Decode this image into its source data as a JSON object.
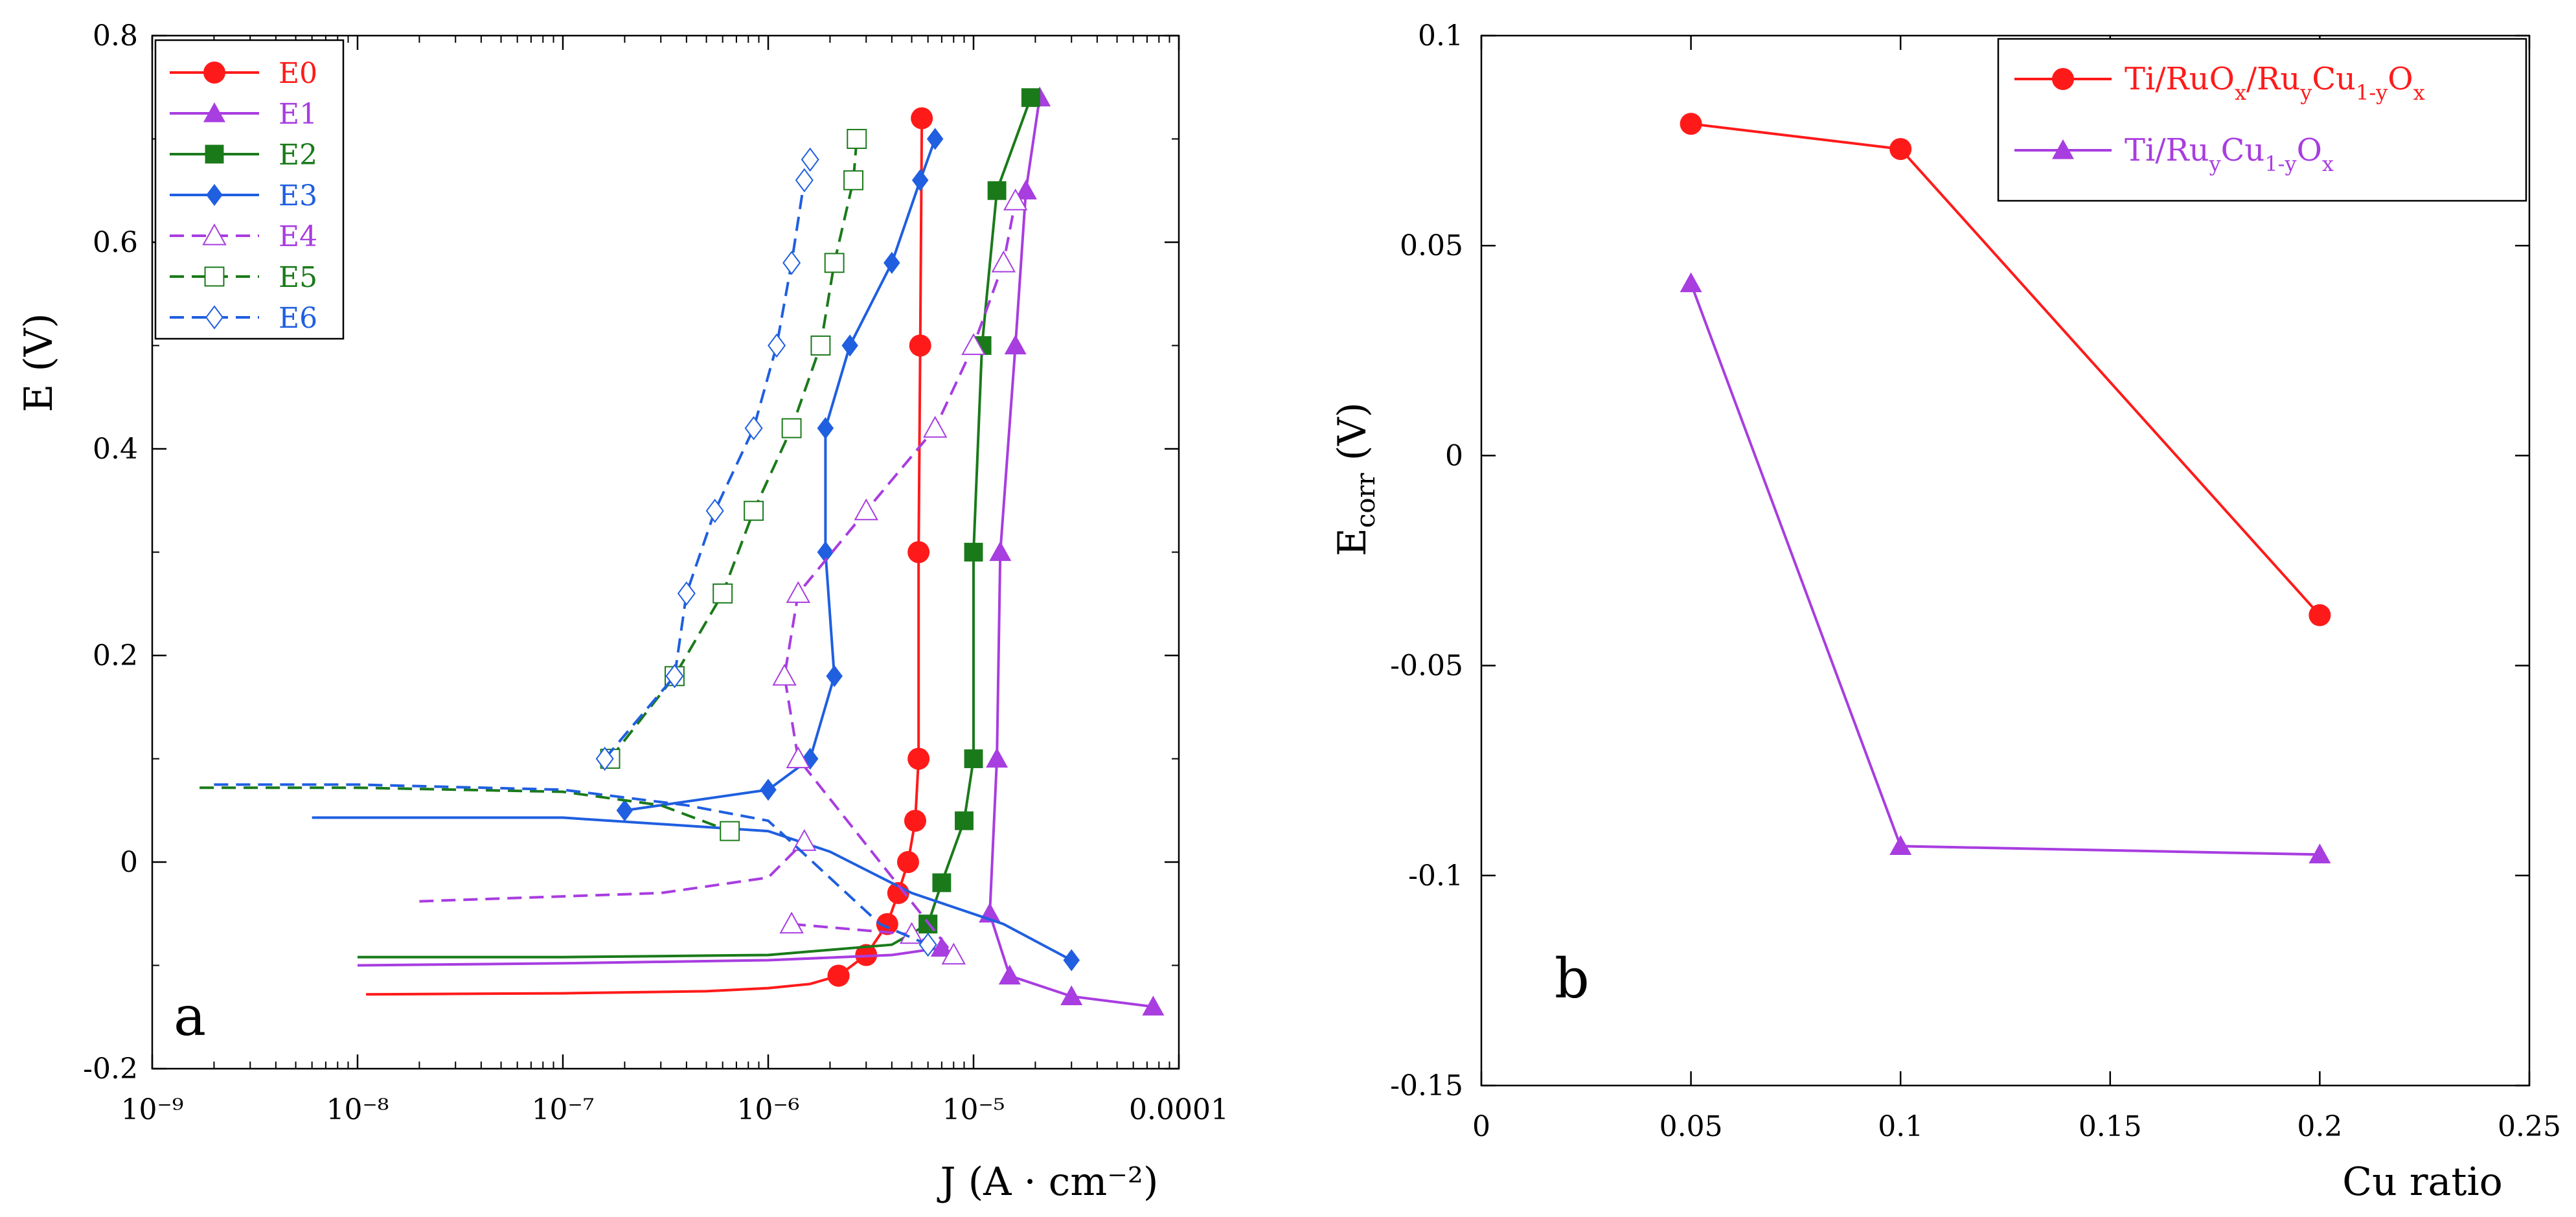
{
  "chart_data": [
    {
      "type": "line",
      "panel_label": "a",
      "xscale": "log",
      "xlim": [
        1e-09,
        0.0001
      ],
      "ylim": [
        -0.2,
        0.8
      ],
      "xlabel": "J (A · cm⁻²)",
      "ylabel": "E (V)",
      "xticks": [
        "10⁻⁹",
        "10⁻⁸",
        "10⁻⁷",
        "10⁻⁶",
        "10⁻⁵",
        "0.0001"
      ],
      "yticks": [
        "-0.2",
        "0",
        "0.2",
        "0.4",
        "0.6",
        "0.8"
      ],
      "legend": "top-left",
      "series": [
        {
          "name": "E0",
          "color": "#ff1a1a",
          "marker": "circle-filled",
          "dash": "solid",
          "cathodic": [
            [
              1.1e-08,
              -0.128
            ],
            [
              1e-07,
              -0.127
            ],
            [
              5e-07,
              -0.125
            ],
            [
              1e-06,
              -0.122
            ],
            [
              1.6e-06,
              -0.118
            ],
            [
              2.2e-06,
              -0.11
            ]
          ],
          "anodic": [
            [
              2.2e-06,
              -0.11
            ],
            [
              3e-06,
              -0.09
            ],
            [
              3.8e-06,
              -0.06
            ],
            [
              4.3e-06,
              -0.03
            ],
            [
              4.8e-06,
              0.0
            ],
            [
              5.2e-06,
              0.04
            ],
            [
              5.4e-06,
              0.1
            ],
            [
              5.4e-06,
              0.3
            ],
            [
              5.5e-06,
              0.5
            ],
            [
              5.6e-06,
              0.72
            ]
          ]
        },
        {
          "name": "E1",
          "color": "#a83de0",
          "marker": "triangle-filled",
          "dash": "solid",
          "cathodic": [
            [
              1e-08,
              -0.1
            ],
            [
              1e-07,
              -0.098
            ],
            [
              1e-06,
              -0.095
            ],
            [
              4e-06,
              -0.09
            ],
            [
              7e-06,
              -0.083
            ]
          ],
          "anodic": [
            [
              7.5e-05,
              -0.14
            ],
            [
              3e-05,
              -0.13
            ],
            [
              1.5e-05,
              -0.11
            ],
            [
              1.2e-05,
              -0.05
            ],
            [
              1.3e-05,
              0.1
            ],
            [
              1.35e-05,
              0.3
            ],
            [
              1.6e-05,
              0.5
            ],
            [
              1.8e-05,
              0.65
            ],
            [
              2.1e-05,
              0.74
            ]
          ]
        },
        {
          "name": "E2",
          "color": "#1a7a1a",
          "marker": "square-filled",
          "dash": "solid",
          "cathodic": [
            [
              1e-08,
              -0.092
            ],
            [
              1e-07,
              -0.092
            ],
            [
              1e-06,
              -0.09
            ],
            [
              4e-06,
              -0.08
            ],
            [
              6e-06,
              -0.06
            ]
          ],
          "anodic": [
            [
              6e-06,
              -0.06
            ],
            [
              7e-06,
              -0.02
            ],
            [
              9e-06,
              0.04
            ],
            [
              1e-05,
              0.1
            ],
            [
              1e-05,
              0.3
            ],
            [
              1.1e-05,
              0.5
            ],
            [
              1.3e-05,
              0.65
            ],
            [
              1.9e-05,
              0.74
            ]
          ]
        },
        {
          "name": "E3",
          "color": "#1f5fe0",
          "marker": "diamond-filled",
          "dash": "solid",
          "cathodic": [
            [
              6e-09,
              0.043
            ],
            [
              1e-07,
              0.043
            ],
            [
              1e-06,
              0.03
            ],
            [
              2e-06,
              0.01
            ],
            [
              5e-06,
              -0.03
            ],
            [
              1.4e-05,
              -0.06
            ],
            [
              3e-05,
              -0.095
            ]
          ],
          "anodic": [
            [
              2e-07,
              0.05
            ],
            [
              1e-06,
              0.07
            ],
            [
              1.6e-06,
              0.1
            ],
            [
              2.1e-06,
              0.18
            ],
            [
              1.9e-06,
              0.3
            ],
            [
              1.9e-06,
              0.42
            ],
            [
              2.5e-06,
              0.5
            ],
            [
              4e-06,
              0.58
            ],
            [
              5.5e-06,
              0.66
            ],
            [
              6.5e-06,
              0.7
            ]
          ]
        },
        {
          "name": "E4",
          "color": "#a83de0",
          "marker": "triangle-open",
          "dash": "dashed",
          "cathodic": [
            [
              2e-08,
              -0.038
            ],
            [
              3e-07,
              -0.03
            ],
            [
              1e-06,
              -0.015
            ],
            [
              1.5e-06,
              0.02
            ]
          ],
          "anodic": [
            [
              1.3e-06,
              -0.06
            ],
            [
              5e-06,
              -0.07
            ],
            [
              8e-06,
              -0.09
            ],
            [
              1.4e-06,
              0.1
            ],
            [
              1.2e-06,
              0.18
            ],
            [
              1.4e-06,
              0.26
            ],
            [
              3e-06,
              0.34
            ],
            [
              6.5e-06,
              0.42
            ],
            [
              1e-05,
              0.5
            ],
            [
              1.4e-05,
              0.58
            ],
            [
              1.6e-05,
              0.64
            ]
          ]
        },
        {
          "name": "E5",
          "color": "#1a7a1a",
          "marker": "square-open",
          "dash": "dashed",
          "cathodic": [
            [
              1.7e-09,
              0.072
            ],
            [
              1e-08,
              0.072
            ],
            [
              1e-07,
              0.068
            ],
            [
              3e-07,
              0.055
            ],
            [
              6.5e-07,
              0.03
            ]
          ],
          "anodic": [
            [
              1.7e-07,
              0.1
            ],
            [
              3.5e-07,
              0.18
            ],
            [
              6e-07,
              0.26
            ],
            [
              8.5e-07,
              0.34
            ],
            [
              1.3e-06,
              0.42
            ],
            [
              1.8e-06,
              0.5
            ],
            [
              2.1e-06,
              0.58
            ],
            [
              2.6e-06,
              0.66
            ],
            [
              2.7e-06,
              0.7
            ]
          ]
        },
        {
          "name": "E6",
          "color": "#1f5fe0",
          "marker": "diamond-open",
          "dash": "dashed",
          "cathodic": [
            [
              2e-09,
              0.075
            ],
            [
              1e-08,
              0.075
            ],
            [
              1e-07,
              0.07
            ],
            [
              4e-07,
              0.055
            ],
            [
              1e-06,
              0.04
            ],
            [
              3.5e-06,
              -0.06
            ],
            [
              6e-06,
              -0.08
            ]
          ],
          "anodic": [
            [
              1.6e-07,
              0.1
            ],
            [
              3.5e-07,
              0.18
            ],
            [
              4e-07,
              0.26
            ],
            [
              5.5e-07,
              0.34
            ],
            [
              8.5e-07,
              0.42
            ],
            [
              1.1e-06,
              0.5
            ],
            [
              1.3e-06,
              0.58
            ],
            [
              1.5e-06,
              0.66
            ],
            [
              1.6e-06,
              0.68
            ]
          ]
        }
      ]
    },
    {
      "type": "line",
      "panel_label": "b",
      "xlim": [
        0,
        0.25
      ],
      "ylim": [
        -0.15,
        0.1
      ],
      "xlabel": "Cu ratio",
      "ylabel": "E_corr (V)",
      "xticks": [
        "0",
        "0.05",
        "0.1",
        "0.15",
        "0.2",
        "0.25"
      ],
      "yticks": [
        "-0.15",
        "-0.1",
        "-0.05",
        "0",
        "0.05",
        "0.1"
      ],
      "legend": "top-right",
      "series": [
        {
          "name": "Ti/RuOx/RuyCu1-yOx",
          "color": "#ff1a1a",
          "marker": "circle-filled",
          "x": [
            0.05,
            0.1,
            0.2
          ],
          "y": [
            0.079,
            0.073,
            -0.038
          ]
        },
        {
          "name": "Ti/RuyCu1-yOx",
          "color": "#a83de0",
          "marker": "triangle-filled",
          "x": [
            0.05,
            0.1,
            0.2
          ],
          "y": [
            0.041,
            -0.093,
            -0.095
          ]
        }
      ]
    }
  ]
}
